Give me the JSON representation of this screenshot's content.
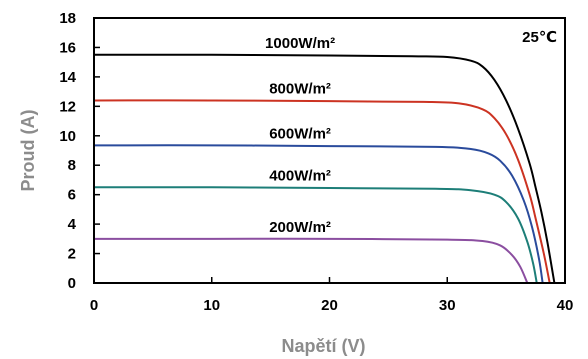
{
  "chart_data": {
    "type": "line",
    "title": "",
    "xlabel": "Napětí  (V)",
    "ylabel": "Proud (A)",
    "xlim": [
      0,
      40
    ],
    "ylim": [
      0,
      18
    ],
    "x_ticks": [
      "0",
      "10",
      "20",
      "30",
      "40"
    ],
    "y_ticks": [
      "0",
      "2",
      "4",
      "6",
      "8",
      "10",
      "12",
      "14",
      "16",
      "18"
    ],
    "grid": false,
    "annotation": "25℃",
    "series": [
      {
        "name": "1000W/m²",
        "color": "#000000",
        "x": [
          0,
          10,
          20,
          27,
          30,
          32,
          33,
          34,
          35,
          36,
          37,
          37.5,
          38,
          38.5,
          39.1
        ],
        "y": [
          15.5,
          15.5,
          15.45,
          15.4,
          15.35,
          15.1,
          14.7,
          13.8,
          12.4,
          10.5,
          8.1,
          6.5,
          4.8,
          2.8,
          0
        ]
      },
      {
        "name": "800W/m²",
        "color": "#cc3322",
        "x": [
          0,
          10,
          20,
          28,
          31,
          33,
          34,
          35,
          36,
          37,
          37.5,
          38.2,
          38.7
        ],
        "y": [
          12.4,
          12.4,
          12.35,
          12.3,
          12.2,
          11.8,
          11.2,
          10.1,
          8.4,
          6.0,
          4.4,
          2.0,
          0
        ]
      },
      {
        "name": "600W/m²",
        "color": "#2a4b9c",
        "x": [
          0,
          10,
          20,
          29,
          32,
          33.5,
          34.5,
          35.5,
          36.5,
          37.2,
          37.8,
          38.1
        ],
        "y": [
          9.35,
          9.35,
          9.3,
          9.25,
          9.1,
          8.8,
          8.3,
          7.3,
          5.6,
          3.8,
          1.6,
          0
        ]
      },
      {
        "name": "400W/m²",
        "color": "#1d7e78",
        "x": [
          0,
          10,
          20,
          29,
          32,
          34,
          35,
          36,
          36.8,
          37.3,
          37.6
        ],
        "y": [
          6.5,
          6.5,
          6.45,
          6.4,
          6.3,
          6.0,
          5.5,
          4.4,
          2.8,
          1.3,
          0
        ]
      },
      {
        "name": "200W/m²",
        "color": "#8b4ea0",
        "x": [
          0,
          10,
          20,
          30,
          33,
          34.5,
          35.5,
          36.2,
          36.8
        ],
        "y": [
          3.0,
          3.0,
          3.0,
          2.95,
          2.85,
          2.55,
          1.9,
          1.1,
          0
        ]
      }
    ]
  }
}
